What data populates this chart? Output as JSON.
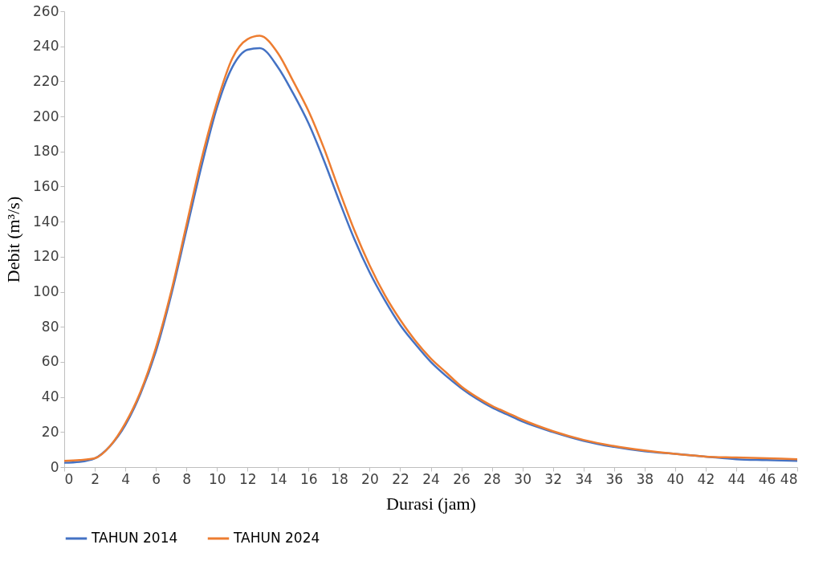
{
  "chart_data": {
    "type": "line",
    "xlabel": "Durasi (jam)",
    "ylabel": "Debit (m³/s)",
    "x": [
      0,
      1,
      2,
      3,
      4,
      5,
      6,
      7,
      8,
      9,
      10,
      11,
      12,
      12.8,
      14,
      15,
      16,
      17,
      18,
      19,
      20,
      21,
      22,
      23,
      24,
      25,
      26,
      27,
      28,
      29,
      30,
      32,
      34,
      36,
      38,
      40,
      42,
      44,
      46,
      48
    ],
    "series": [
      {
        "name": "TAHUN 2014",
        "color": "#4472c4",
        "values": [
          2.5,
          3,
          5,
          12,
          24,
          42,
          66,
          98,
          135,
          172,
          205,
          228,
          238,
          239,
          228,
          213,
          196,
          175,
          152,
          130,
          111,
          95,
          81,
          70,
          60,
          52,
          45,
          39,
          34,
          30,
          26,
          20,
          15,
          11.5,
          9,
          7.5,
          6,
          4.5,
          4,
          3.5
        ]
      },
      {
        "name": "TAHUN 2024",
        "color": "#ed7d31",
        "values": [
          3.5,
          4,
          5,
          12,
          25,
          43,
          68,
          100,
          138,
          176,
          208,
          233,
          244,
          246,
          236,
          220,
          203,
          182,
          158,
          135,
          115,
          98,
          84,
          72,
          62,
          54,
          46,
          40,
          35,
          31,
          27,
          20.5,
          15.5,
          12,
          9.5,
          7.5,
          6,
          5.5,
          5,
          4.5
        ]
      }
    ],
    "xlim": [
      0,
      48
    ],
    "xticks": [
      0,
      2,
      4,
      6,
      8,
      10,
      12,
      14,
      16,
      18,
      20,
      22,
      24,
      26,
      28,
      30,
      32,
      34,
      36,
      38,
      40,
      42,
      44,
      46,
      48
    ],
    "ylim": [
      0,
      260
    ],
    "yticks": [
      0,
      20,
      40,
      60,
      80,
      100,
      120,
      140,
      160,
      180,
      200,
      220,
      240,
      260
    ],
    "grid": false,
    "legend": "bottom",
    "marker": "none",
    "line_style": "solid"
  }
}
